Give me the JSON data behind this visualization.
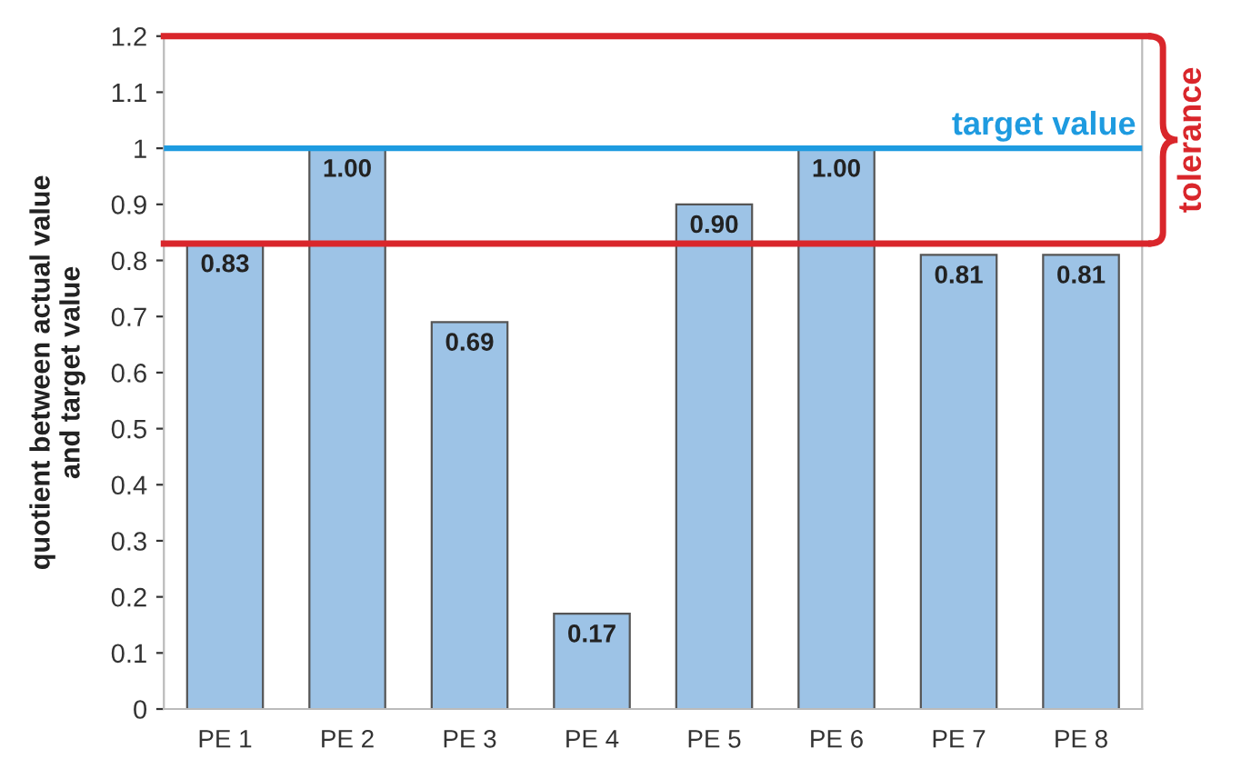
{
  "chart_data": {
    "type": "bar",
    "ylabel": "quotient between actual value\nand target value",
    "categories": [
      "PE 1",
      "PE 2",
      "PE 3",
      "PE 4",
      "PE 5",
      "PE 6",
      "PE 7",
      "PE 8"
    ],
    "values": [
      0.83,
      1.0,
      0.69,
      0.17,
      0.9,
      1.0,
      0.81,
      0.81
    ],
    "value_labels": [
      "0.83",
      "1.00",
      "0.69",
      "0.17",
      "0.90",
      "1.00",
      "0.81",
      "0.81"
    ],
    "color": "#9dc3e6",
    "ylim": [
      0,
      1.2
    ],
    "yticks": [
      0,
      0.1,
      0.2,
      0.3,
      0.4,
      0.5,
      0.6,
      0.7,
      0.8,
      0.9,
      1,
      1.1,
      1.2
    ],
    "ref_lines": [
      {
        "axis": "y",
        "value": 1,
        "label": "target value",
        "color": "#1e9be0"
      },
      {
        "axis": "y",
        "value": 1.2,
        "color": "#d9262b"
      },
      {
        "axis": "y",
        "value": 0.83,
        "color": "#d9262b"
      }
    ],
    "annotations": [
      "tolerance"
    ],
    "grid": false,
    "legend": false
  }
}
